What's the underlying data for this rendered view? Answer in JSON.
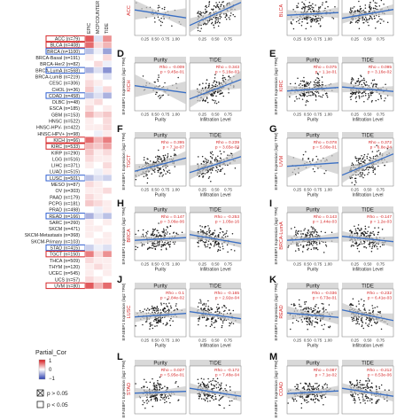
{
  "colors": {
    "positive": "#d7191c",
    "negative": "#2c3fb0",
    "line": "#3a6fc4",
    "ci": "#c8c8c8",
    "point": "#222222",
    "highlight_red": "#d62728",
    "highlight_blue": "#2f5fd0"
  },
  "chart_data": [
    {
      "type": "heatmap",
      "column_headers": [
        "EPIC",
        "MCPCOUNTER",
        "TIDE"
      ],
      "rows": [
        {
          "label": "ACC (n=79)",
          "values": [
            0.45,
            -0.1,
            0.3
          ],
          "box": "red"
        },
        {
          "label": "BLCA (n=408)",
          "values": [
            0.4,
            0.1,
            0.2
          ],
          "box": "red"
        },
        {
          "label": "BRCA (n=1100)",
          "values": [
            -0.2,
            -0.05,
            -0.3
          ],
          "box": "blue"
        },
        {
          "label": "BRCA-Basal (n=191)",
          "values": [
            0.05,
            0.0,
            0.1
          ],
          "box": ""
        },
        {
          "label": "BRCA-Her2 (n=82)",
          "values": [
            0.0,
            0.1,
            -0.05
          ],
          "box": ""
        },
        {
          "label": "BRCA-LumA (n=568)",
          "values": [
            -0.25,
            -0.1,
            -0.35
          ],
          "box": "blue"
        },
        {
          "label": "BRCA-LumB (n=219)",
          "values": [
            0.05,
            0.0,
            -0.1
          ],
          "box": ""
        },
        {
          "label": "CESC (n=306)",
          "values": [
            0.1,
            0.05,
            0.0
          ],
          "box": ""
        },
        {
          "label": "CHOL (n=36)",
          "values": [
            0.15,
            -0.05,
            0.1
          ],
          "box": ""
        },
        {
          "label": "COAD (n=458)",
          "values": [
            -0.2,
            -0.1,
            -0.25
          ],
          "box": "blue"
        },
        {
          "label": "DLBC (n=48)",
          "values": [
            0.05,
            0.1,
            0.0
          ],
          "box": ""
        },
        {
          "label": "ESCA (n=185)",
          "values": [
            0.1,
            0.0,
            0.05
          ],
          "box": ""
        },
        {
          "label": "GBM (n=153)",
          "values": [
            0.2,
            0.1,
            0.15
          ],
          "box": ""
        },
        {
          "label": "HNSC (n=522)",
          "values": [
            0.05,
            0.0,
            0.1
          ],
          "box": ""
        },
        {
          "label": "HNSC-HPV- (n=422)",
          "values": [
            0.05,
            0.05,
            0.1
          ],
          "box": ""
        },
        {
          "label": "HNSC-HPV+ (n=98)",
          "values": [
            0.0,
            -0.05,
            0.05
          ],
          "box": ""
        },
        {
          "label": "KICH (n=66)",
          "values": [
            0.4,
            0.2,
            0.35
          ],
          "box": "red"
        },
        {
          "label": "KIRC (n=533)",
          "values": [
            0.2,
            0.15,
            0.25
          ],
          "box": "red"
        },
        {
          "label": "KIRP (n=290)",
          "values": [
            0.15,
            0.05,
            0.1
          ],
          "box": ""
        },
        {
          "label": "LGG (n=516)",
          "values": [
            0.1,
            0.05,
            0.05
          ],
          "box": ""
        },
        {
          "label": "LIHC (n=371)",
          "values": [
            0.05,
            0.0,
            0.1
          ],
          "box": ""
        },
        {
          "label": "LUAD (n=515)",
          "values": [
            0.0,
            -0.05,
            0.05
          ],
          "box": ""
        },
        {
          "label": "LUSC (n=501)",
          "values": [
            -0.2,
            -0.1,
            -0.15
          ],
          "box": "blue"
        },
        {
          "label": "MESO (n=87)",
          "values": [
            0.1,
            0.05,
            0.0
          ],
          "box": ""
        },
        {
          "label": "OV (n=303)",
          "values": [
            0.05,
            0.05,
            0.1
          ],
          "box": ""
        },
        {
          "label": "PAAD (n=179)",
          "values": [
            0.1,
            0.05,
            0.0
          ],
          "box": ""
        },
        {
          "label": "PCPG (n=181)",
          "values": [
            0.15,
            0.1,
            0.05
          ],
          "box": ""
        },
        {
          "label": "PRAD (n=498)",
          "values": [
            0.0,
            -0.05,
            0.05
          ],
          "box": ""
        },
        {
          "label": "READ (n=166)",
          "values": [
            -0.25,
            -0.1,
            -0.2
          ],
          "box": "blue"
        },
        {
          "label": "SARC (n=260)",
          "values": [
            0.05,
            0.0,
            0.05
          ],
          "box": ""
        },
        {
          "label": "SKCM (n=471)",
          "values": [
            0.05,
            0.05,
            0.0
          ],
          "box": ""
        },
        {
          "label": "SKCM-Metastasis (n=368)",
          "values": [
            0.05,
            0.0,
            0.05
          ],
          "box": ""
        },
        {
          "label": "SKCM-Primary (n=103)",
          "values": [
            0.0,
            0.05,
            0.05
          ],
          "box": ""
        },
        {
          "label": "STAD (n=415)",
          "values": [
            -0.15,
            -0.05,
            -0.1
          ],
          "box": "blue"
        },
        {
          "label": "TGCT (n=150)",
          "values": [
            0.35,
            0.1,
            0.3
          ],
          "box": "red"
        },
        {
          "label": "THCA (n=509)",
          "values": [
            0.1,
            0.05,
            0.05
          ],
          "box": ""
        },
        {
          "label": "THYM (n=120)",
          "values": [
            0.05,
            0.1,
            0.05
          ],
          "box": ""
        },
        {
          "label": "UCEC (n=545)",
          "values": [
            0.05,
            0.0,
            0.05
          ],
          "box": ""
        },
        {
          "label": "UCS (n=57)",
          "values": [
            0.1,
            0.05,
            0.0
          ],
          "box": ""
        },
        {
          "label": "UVM (n=80)",
          "values": [
            0.45,
            0.2,
            0.4
          ],
          "box": "red"
        }
      ],
      "color_scale": {
        "min": -1,
        "max": 1
      },
      "legend": {
        "title": "Partial_Cor",
        "ticks": [
          "1",
          "0",
          "−1"
        ],
        "sig_high": "p > 0.05",
        "sig_low": "p < 0.05"
      }
    },
    {
      "type": "scatter",
      "panels": [
        {
          "letter": "",
          "cancer": "ACC",
          "ylabel": "",
          "xticks": [
            "",
            ""
          ],
          "purity_slope": -0.9,
          "purity_ci": 0.8,
          "purity_sparse": true,
          "tide_stat": [
            "Rho = 0.429",
            "p = 8.68e-03"
          ],
          "tide_color": "red",
          "tide_slope": 2.6,
          "tide_ci": 0.5,
          "tide_spread": 0.3,
          "purity_stat": [
            "",
            ""
          ],
          "purity_color": "red",
          "cut_top": true
        },
        {
          "letter": "",
          "cancer": "BLCA",
          "ylabel": "",
          "xticks": [
            "",
            ""
          ],
          "purity_slope": 0.3,
          "purity_ci": 0.3,
          "purity_sparse": false,
          "tide_stat": [
            "Rho = 0.237",
            "p = 4.2e-06"
          ],
          "tide_color": "red",
          "tide_slope": 1.0,
          "tide_ci": 0.3,
          "tide_spread": 0.3,
          "purity_stat": [
            "",
            ""
          ],
          "purity_color": "red",
          "cut_top": true
        },
        {
          "letter": "D",
          "cancer": "KICH",
          "ylabel": "EIF4EBP1 Expression (log2 TPM)",
          "xticks": [
            "Purity",
            "Infiltration Level"
          ],
          "purity_slope": -0.8,
          "purity_ci": 1.0,
          "purity_sparse": true,
          "tide_stat": [
            "Rho = 0.343",
            "p = 5.16e-03"
          ],
          "tide_color": "red",
          "tide_slope": 2.2,
          "tide_ci": 0.7,
          "tide_spread": 0.3,
          "purity_stat": [
            "Rho = -0.009",
            "p = 9.45e-01"
          ],
          "purity_color": "red"
        },
        {
          "letter": "E",
          "cancer": "KIRC",
          "ylabel": "EIF4EBP1 Expression (log2 TPM)",
          "xticks": [
            "Purity",
            "Infiltration Level"
          ],
          "purity_slope": 0.4,
          "purity_ci": 0.3,
          "purity_sparse": false,
          "tide_stat": [
            "Rho = 0.095",
            "p = 3.16e-02"
          ],
          "tide_color": "red",
          "tide_slope": -0.5,
          "tide_ci": 0.3,
          "tide_spread": 0.3,
          "purity_stat": [
            "Rho = 0.075",
            "p = 1.1e-01"
          ],
          "purity_color": "red"
        },
        {
          "letter": "F",
          "cancer": "TGCT",
          "ylabel": "EIF4EBP1 Expression (log2 TPM)",
          "xticks": [
            "Purity",
            "Infiltration Level"
          ],
          "purity_slope": 1.5,
          "purity_ci": 0.5,
          "purity_sparse": false,
          "tide_stat": [
            "Rho = 0.239",
            "p = 3.65e-03"
          ],
          "tide_color": "red",
          "tide_slope": 1.8,
          "tide_ci": 0.5,
          "tide_spread": 0.3,
          "purity_stat": [
            "Rho = 0.395",
            "p = 7.1e-07"
          ],
          "purity_color": "red"
        },
        {
          "letter": "G",
          "cancer": "UVM",
          "ylabel": "EIF4EBP1 Expression (log2 TPM)",
          "xticks": [
            "Purity",
            "Infiltration Level"
          ],
          "purity_slope": 0.4,
          "purity_ci": 1.0,
          "purity_sparse": true,
          "tide_stat": [
            "Rho = 0.372",
            "p = 6.8e-04"
          ],
          "tide_color": "red",
          "tide_slope": 2.4,
          "tide_ci": 0.6,
          "tide_spread": 0.3,
          "purity_stat": [
            "Rho = 0.078",
            "p = 5.00e-01"
          ],
          "purity_color": "red"
        },
        {
          "letter": "H",
          "cancer": "BRCA",
          "ylabel": "EIF4EBP1 Expression (log2 TPM)",
          "xticks": [
            "Purity",
            "Infiltration Level"
          ],
          "purity_slope": 0.3,
          "purity_ci": 0.2,
          "purity_sparse": false,
          "tide_stat": [
            "Rho = -0.253",
            "p = 1.05e-16"
          ],
          "tide_color": "red",
          "tide_slope": -1.0,
          "tide_ci": 0.2,
          "tide_spread": 0.3,
          "purity_stat": [
            "Rho = 0.147",
            "p = 3.06e-06"
          ],
          "purity_color": "red"
        },
        {
          "letter": "I",
          "cancer": "BRCA-LumA",
          "ylabel": "EIF4EBP1 Expression (log2 TPM)",
          "xticks": [
            "Purity",
            "Infiltration Level"
          ],
          "purity_slope": 0.3,
          "purity_ci": 0.3,
          "purity_sparse": false,
          "tide_stat": [
            "Rho = -0.147",
            "p = 1.2e-03"
          ],
          "tide_color": "red",
          "tide_slope": -0.6,
          "tide_ci": 0.3,
          "tide_spread": 0.3,
          "purity_stat": [
            "Rho = 0.143",
            "p = 1.44e-03"
          ],
          "purity_color": "red"
        },
        {
          "letter": "J",
          "cancer": "LUSC",
          "ylabel": "EIF4EBP1 Expression (log2 TPM)",
          "xticks": [
            "Purity",
            "Infiltration Level"
          ],
          "purity_slope": 0.4,
          "purity_ci": 0.3,
          "purity_sparse": false,
          "tide_stat": [
            "Rho = -0.165",
            "p = 2.92e-04"
          ],
          "tide_color": "red",
          "tide_slope": -0.8,
          "tide_ci": 0.3,
          "tide_spread": 0.3,
          "purity_stat": [
            "Rho = 0.1",
            "p = 2.84e-02"
          ],
          "purity_color": "red"
        },
        {
          "letter": "K",
          "cancer": "READ",
          "ylabel": "EIF4EBP1 Expression (log2 TPM)",
          "xticks": [
            "Purity",
            "Infiltration Level"
          ],
          "purity_slope": -0.5,
          "purity_ci": 0.5,
          "purity_sparse": false,
          "tide_stat": [
            "Rho = -0.232",
            "p = 6.41e-03"
          ],
          "tide_color": "red",
          "tide_slope": -1.2,
          "tide_ci": 0.5,
          "tide_spread": 0.3,
          "purity_stat": [
            "Rho = -0.036",
            "p = 6.73e-01"
          ],
          "purity_color": "red"
        },
        {
          "letter": "L",
          "cancer": "STAD",
          "ylabel": "EIF4EBP1 Expression (log2 TPM)",
          "xticks": [
            "",
            ""
          ],
          "purity_slope": 0.2,
          "purity_ci": 0.3,
          "purity_sparse": false,
          "tide_stat": [
            "Rho = -0.172",
            "p = 7.48e-04"
          ],
          "tide_color": "red",
          "tide_slope": -0.9,
          "tide_ci": 0.3,
          "tide_spread": 0.3,
          "purity_stat": [
            "Rho = 0.027",
            "p = 5.95e-01"
          ],
          "purity_color": "red",
          "cut_bottom": true
        },
        {
          "letter": "M",
          "cancer": "COAD",
          "ylabel": "EIF4EBP1 Expression (log2 TPM)",
          "xticks": [
            "",
            ""
          ],
          "purity_slope": 0.3,
          "purity_ci": 0.3,
          "purity_sparse": false,
          "tide_stat": [
            "Rho = -0.212",
            "p = 8.53e-06"
          ],
          "tide_color": "red",
          "tide_slope": -0.9,
          "tide_ci": 0.3,
          "tide_spread": 0.3,
          "purity_stat": [
            "Rho = 0.087",
            "p = 7.1e-02"
          ],
          "purity_color": "red",
          "cut_bottom": true
        }
      ],
      "facet_titles": [
        "Purity",
        "TIDE"
      ],
      "purity_xticks": [
        "0.25",
        "0.50",
        "0.75",
        "1.00"
      ],
      "tide_xticks": [
        "0.25",
        "0.50",
        "0.75"
      ]
    }
  ]
}
